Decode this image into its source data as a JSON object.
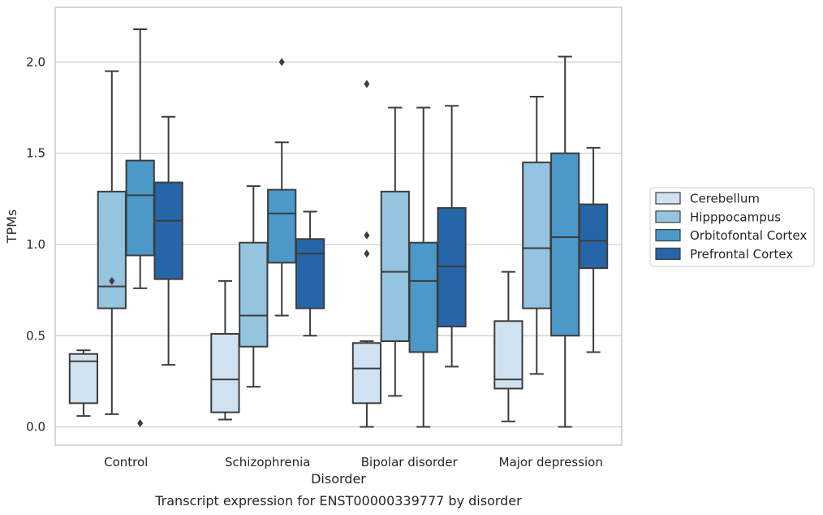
{
  "chart_data": {
    "type": "box",
    "caption": "Transcript expression for ENST00000339777 by disorder",
    "xlabel": "Disorder",
    "ylabel": "TPMs",
    "ylim": [
      -0.1,
      2.3
    ],
    "yticks": [
      0.0,
      0.5,
      1.0,
      1.5,
      2.0
    ],
    "ytick_labels": [
      "0.0",
      "0.5",
      "1.0",
      "1.5",
      "2.0"
    ],
    "grid": "horizontal",
    "legend_position": "right",
    "categories": [
      "Control",
      "Schizophrenia",
      "Bipolar disorder",
      "Major depression"
    ],
    "series": [
      {
        "name": "Cerebellum",
        "color": "#d0e1f2",
        "boxes": [
          {
            "q1": 0.13,
            "median": 0.36,
            "q3": 0.4,
            "whisker_low": 0.06,
            "whisker_high": 0.42,
            "outliers": []
          },
          {
            "q1": 0.08,
            "median": 0.26,
            "q3": 0.51,
            "whisker_low": 0.04,
            "whisker_high": 0.8,
            "outliers": []
          },
          {
            "q1": 0.13,
            "median": 0.32,
            "q3": 0.46,
            "whisker_low": 0.0,
            "whisker_high": 0.47,
            "outliers": [
              0.95,
              1.05,
              1.88
            ]
          },
          {
            "q1": 0.21,
            "median": 0.26,
            "q3": 0.58,
            "whisker_low": 0.03,
            "whisker_high": 0.85,
            "outliers": []
          }
        ]
      },
      {
        "name": "Hipppocampus",
        "color": "#94c4df",
        "boxes": [
          {
            "q1": 0.65,
            "median": 0.77,
            "q3": 1.29,
            "whisker_low": 0.07,
            "whisker_high": 1.95,
            "outliers": [
              0.8
            ]
          },
          {
            "q1": 0.44,
            "median": 0.61,
            "q3": 1.01,
            "whisker_low": 0.22,
            "whisker_high": 1.32,
            "outliers": []
          },
          {
            "q1": 0.47,
            "median": 0.85,
            "q3": 1.29,
            "whisker_low": 0.17,
            "whisker_high": 1.75,
            "outliers": []
          },
          {
            "q1": 0.65,
            "median": 0.98,
            "q3": 1.45,
            "whisker_low": 0.29,
            "whisker_high": 1.81,
            "outliers": []
          }
        ]
      },
      {
        "name": "Orbitofontal Cortex",
        "color": "#4b98c9",
        "boxes": [
          {
            "q1": 0.94,
            "median": 1.27,
            "q3": 1.46,
            "whisker_low": 0.76,
            "whisker_high": 2.18,
            "outliers": [
              0.02
            ]
          },
          {
            "q1": 0.9,
            "median": 1.17,
            "q3": 1.3,
            "whisker_low": 0.61,
            "whisker_high": 1.56,
            "outliers": [
              2.0
            ]
          },
          {
            "q1": 0.41,
            "median": 0.8,
            "q3": 1.01,
            "whisker_low": 0.0,
            "whisker_high": 1.75,
            "outliers": []
          },
          {
            "q1": 0.5,
            "median": 1.04,
            "q3": 1.5,
            "whisker_low": 0.0,
            "whisker_high": 2.03,
            "outliers": []
          }
        ]
      },
      {
        "name": "Prefrontal Cortex",
        "color": "#2666a8",
        "boxes": [
          {
            "q1": 0.81,
            "median": 1.13,
            "q3": 1.34,
            "whisker_low": 0.34,
            "whisker_high": 1.7,
            "outliers": []
          },
          {
            "q1": 0.65,
            "median": 0.95,
            "q3": 1.03,
            "whisker_low": 0.5,
            "whisker_high": 1.18,
            "outliers": []
          },
          {
            "q1": 0.55,
            "median": 0.88,
            "q3": 1.2,
            "whisker_low": 0.33,
            "whisker_high": 1.76,
            "outliers": []
          },
          {
            "q1": 0.87,
            "median": 1.02,
            "q3": 1.22,
            "whisker_low": 0.41,
            "whisker_high": 1.53,
            "outliers": []
          }
        ]
      }
    ]
  }
}
